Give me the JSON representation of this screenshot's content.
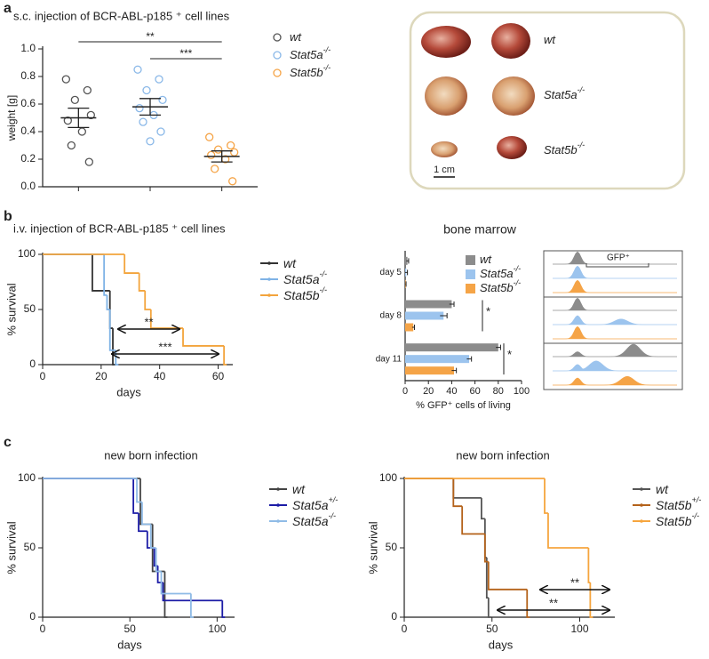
{
  "panels": [
    "a",
    "b",
    "c"
  ],
  "photo": {
    "labels": [
      {
        "name": "wt"
      },
      {
        "name": "Stat5a",
        "sup": "-/-"
      },
      {
        "name": "Stat5b",
        "sup": "-/-"
      }
    ],
    "scale_bar": "1 cm"
  },
  "flow": {
    "label": "GFP⁺"
  },
  "chart_data": [
    {
      "type": "dot",
      "title": "s.c. injection of BCR-ABL-p185 ⁺ cell lines",
      "ylabel": "weight [g]",
      "ylim": [
        0,
        1
      ],
      "yticks": [
        {
          "value": 0,
          "label": "0.0"
        },
        {
          "value": 0.2,
          "label": "0.2"
        },
        {
          "value": 0.4,
          "label": "0.4"
        },
        {
          "value": 0.6,
          "label": "0.6"
        },
        {
          "value": 0.8,
          "label": "0.8"
        },
        {
          "value": 1,
          "label": "1.0"
        }
      ],
      "series": [
        {
          "name": "wt",
          "color": "#555555",
          "values": [
            0.78,
            0.7,
            0.63,
            0.52,
            0.48,
            0.4,
            0.3,
            0.18
          ],
          "mean": 0.5,
          "sem": 0.07
        },
        {
          "name": "Stat5a",
          "sup": "-/-",
          "color": "#8ab8e8",
          "values": [
            0.85,
            0.78,
            0.7,
            0.63,
            0.57,
            0.52,
            0.47,
            0.4,
            0.33
          ],
          "mean": 0.58,
          "sem": 0.06
        },
        {
          "name": "Stat5b",
          "sup": "-/-",
          "color": "#f5a447",
          "values": [
            0.36,
            0.3,
            0.27,
            0.25,
            0.23,
            0.2,
            0.13,
            0.04
          ],
          "mean": 0.22,
          "sem": 0.04
        }
      ],
      "significance": [
        "**",
        "***"
      ]
    },
    {
      "type": "survival",
      "title": "i.v. injection of BCR-ABL-p185 ⁺ cell lines",
      "xlabel": "days",
      "ylabel": "% survival",
      "xlim": [
        0,
        65
      ],
      "xticks": [
        0,
        20,
        40,
        60
      ],
      "ylim": [
        0,
        100
      ],
      "yticks": [
        0,
        50,
        100
      ],
      "series": [
        {
          "name": "wt",
          "color": "#333333",
          "x": [
            0,
            17,
            23,
            24
          ],
          "values": [
            100,
            67,
            33,
            0
          ]
        },
        {
          "name": "Stat5a",
          "sup": "-/-",
          "color": "#7fb3e6",
          "x": [
            0,
            21,
            22,
            23,
            25
          ],
          "values": [
            100,
            63,
            50,
            13,
            0
          ]
        },
        {
          "name": "Stat5b",
          "sup": "-/-",
          "color": "#f3a43c",
          "x": [
            0,
            28,
            33,
            35,
            37,
            48,
            62
          ],
          "values": [
            100,
            83,
            67,
            50,
            33,
            17,
            0
          ]
        }
      ],
      "significance": [
        "**",
        "***"
      ]
    },
    {
      "type": "hbar",
      "title": "bone marrow",
      "xlabel": "% GFP⁺ cells of living",
      "categories": [
        "day 5",
        "day 8",
        "day 11"
      ],
      "xlim": [
        0,
        100
      ],
      "xticks": [
        0,
        20,
        40,
        60,
        80,
        100
      ],
      "series": [
        {
          "name": "wt",
          "color": "#8c8c8c",
          "values": [
            2,
            40,
            80
          ],
          "errors": [
            1,
            2,
            2
          ]
        },
        {
          "name": "Stat5a",
          "sup": "-/-",
          "color": "#9cc4ee",
          "values": [
            1,
            33,
            55
          ],
          "errors": [
            1,
            3,
            2
          ]
        },
        {
          "name": "Stat5b",
          "sup": "-/-",
          "color": "#f5a447",
          "values": [
            0.5,
            7,
            42
          ],
          "errors": [
            0.3,
            1,
            2
          ]
        }
      ],
      "significance": [
        "*",
        "*"
      ]
    },
    {
      "type": "survival",
      "title": "new born infection",
      "xlabel": "days",
      "ylabel": "% survival",
      "xlim": [
        0,
        110
      ],
      "xticks": [
        0,
        50,
        100
      ],
      "ylim": [
        0,
        100
      ],
      "yticks": [
        0,
        50,
        100
      ],
      "series": [
        {
          "name": "wt",
          "color": "#444444",
          "x": [
            0,
            56,
            63,
            70
          ],
          "values": [
            100,
            67,
            33,
            0
          ]
        },
        {
          "name": "Stat5a",
          "sup": "+/-",
          "color": "#1c1ca6",
          "x": [
            0,
            52,
            55,
            60,
            64,
            66,
            69,
            103
          ],
          "values": [
            100,
            75,
            62,
            50,
            37,
            25,
            12,
            0
          ]
        },
        {
          "name": "Stat5a",
          "sup": "-/-",
          "color": "#8fbbe6",
          "x": [
            0,
            54,
            57,
            62,
            65,
            68,
            85
          ],
          "values": [
            100,
            83,
            67,
            50,
            33,
            17,
            0
          ]
        }
      ],
      "significance": []
    },
    {
      "type": "survival",
      "title": "new born infection",
      "xlabel": "days",
      "ylabel": "% survival",
      "xlim": [
        0,
        120
      ],
      "xticks": [
        0,
        50,
        100
      ],
      "ylim": [
        0,
        100
      ],
      "yticks": [
        0,
        50,
        100
      ],
      "series": [
        {
          "name": "wt",
          "color": "#555555",
          "x": [
            0,
            28,
            44,
            46,
            47,
            48
          ],
          "values": [
            100,
            86,
            71,
            43,
            14,
            0
          ]
        },
        {
          "name": "Stat5b",
          "sup": "+/-",
          "color": "#b4621a",
          "x": [
            0,
            28,
            33,
            46,
            48,
            70
          ],
          "values": [
            100,
            80,
            60,
            40,
            20,
            0
          ]
        },
        {
          "name": "Stat5b",
          "sup": "-/-",
          "color": "#f6a53e",
          "x": [
            0,
            80,
            82,
            105,
            106
          ],
          "values": [
            100,
            75,
            50,
            25,
            0
          ]
        }
      ],
      "significance": [
        "**",
        "**"
      ]
    }
  ]
}
